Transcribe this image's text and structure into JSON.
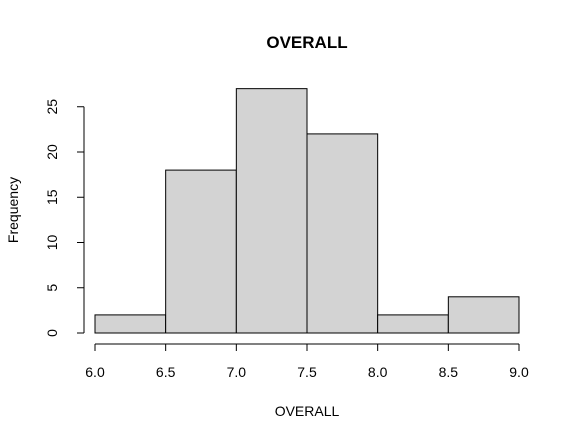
{
  "chart_data": {
    "type": "bar",
    "subtype": "histogram",
    "title": "OVERALL",
    "xlabel": "OVERALL",
    "ylabel": "Frequency",
    "bins": [
      {
        "from": 6.0,
        "to": 6.5,
        "count": 2
      },
      {
        "from": 6.5,
        "to": 7.0,
        "count": 18
      },
      {
        "from": 7.0,
        "to": 7.5,
        "count": 27
      },
      {
        "from": 7.5,
        "to": 8.0,
        "count": 22
      },
      {
        "from": 8.0,
        "to": 8.5,
        "count": 2
      },
      {
        "from": 8.5,
        "to": 9.0,
        "count": 4
      }
    ],
    "xlim": [
      6.0,
      9.0
    ],
    "ylim": [
      0,
      27
    ],
    "x_ticks": [
      "6.0",
      "6.5",
      "7.0",
      "7.5",
      "8.0",
      "8.5",
      "9.0"
    ],
    "y_ticks": [
      "0",
      "5",
      "10",
      "15",
      "20",
      "25"
    ],
    "grid": false,
    "colors": {
      "bar_fill": "#d3d3d3",
      "bar_stroke": "#000000"
    }
  }
}
